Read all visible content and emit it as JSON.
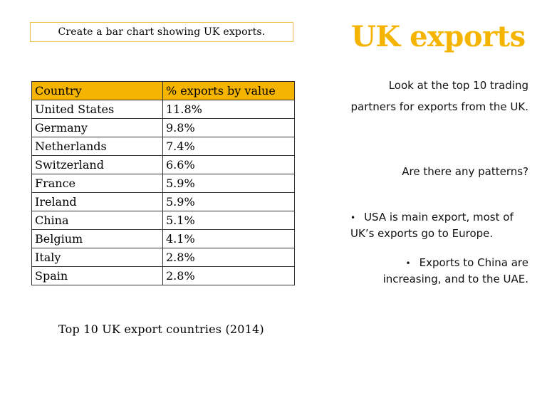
{
  "instruction": "Create a bar chart showing UK exports.",
  "title": "UK exports",
  "table": {
    "headers": [
      "Country",
      "% exports by value"
    ],
    "rows": [
      [
        "United States",
        "11.8%"
      ],
      [
        "Germany",
        "9.8%"
      ],
      [
        "Netherlands",
        "7.4%"
      ],
      [
        "Switzerland",
        "6.6%"
      ],
      [
        "France",
        "5.9%"
      ],
      [
        "Ireland",
        "5.9%"
      ],
      [
        "China",
        "5.1%"
      ],
      [
        "Belgium",
        "4.1%"
      ],
      [
        "Italy",
        "2.8%"
      ],
      [
        "Spain",
        "2.8%"
      ]
    ],
    "caption": "Top 10 UK export countries (2014)"
  },
  "right": {
    "look_at": "Look at the top 10 trading partners for exports from the UK.",
    "patterns": "Are there any patterns?",
    "bullets": [
      "USA is main export, most of UK’s exports go to Europe.",
      "Exports to China are increasing, and to the UAE."
    ]
  },
  "colors": {
    "accent": "#f5b400",
    "box_border": "#f2c14a",
    "table_border": "#333333"
  }
}
